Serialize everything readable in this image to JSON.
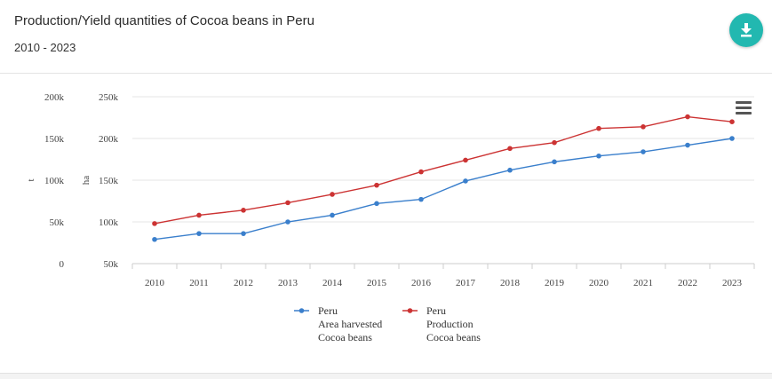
{
  "header": {
    "title": "Production/Yield quantities of Cocoa beans in Peru",
    "subtitle": "2010 - 2023",
    "download_icon": "download-icon"
  },
  "menu_icon": "hamburger-menu-icon",
  "colors": {
    "area_series": "#3a7fcc",
    "production_series": "#cc3333",
    "download_button": "#22b8b0",
    "grid": "#e6e6e6"
  },
  "chart_data": {
    "type": "line",
    "title": "Production/Yield quantities of Cocoa beans in Peru",
    "subtitle": "2010 - 2023",
    "x": [
      "2010",
      "2011",
      "2012",
      "2013",
      "2014",
      "2015",
      "2016",
      "2017",
      "2018",
      "2019",
      "2020",
      "2021",
      "2022",
      "2023"
    ],
    "left_axis": {
      "label": "t",
      "range": [
        0,
        200000
      ],
      "ticks": [
        "0",
        "50k",
        "100k",
        "150k",
        "200k"
      ]
    },
    "right_axis": {
      "label": "ha",
      "range": [
        50000,
        250000
      ],
      "ticks": [
        "50k",
        "100k",
        "150k",
        "200k",
        "250k"
      ]
    },
    "grid": true,
    "legend_position": "bottom",
    "series": [
      {
        "name": "Peru\nArea harvested\nCocoa beans",
        "axis": "right",
        "color": "#3a7fcc",
        "values": [
          79000,
          86000,
          86000,
          100000,
          108000,
          122000,
          127000,
          149000,
          162000,
          172000,
          179000,
          184000,
          192000,
          200000
        ]
      },
      {
        "name": "Peru\nProduction\nCocoa beans",
        "axis": "left",
        "color": "#cc3333",
        "values": [
          48000,
          58000,
          64000,
          73000,
          83000,
          94000,
          110000,
          124000,
          138000,
          145000,
          162000,
          164000,
          176000,
          170000
        ]
      }
    ]
  }
}
